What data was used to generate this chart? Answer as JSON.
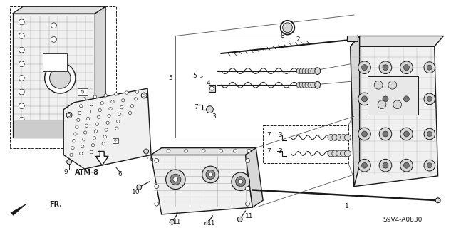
{
  "background_color": "#ffffff",
  "diagram_code": "S9V4-A0830",
  "ref_label": "ATM-8",
  "direction_label": "FR.",
  "fig_width": 6.4,
  "fig_height": 3.2,
  "dpi": 100,
  "line_color": "#1a1a1a",
  "fill_light": "#f0f0f0",
  "fill_mid": "#d8d8d8",
  "fill_dark": "#aaaaaa"
}
